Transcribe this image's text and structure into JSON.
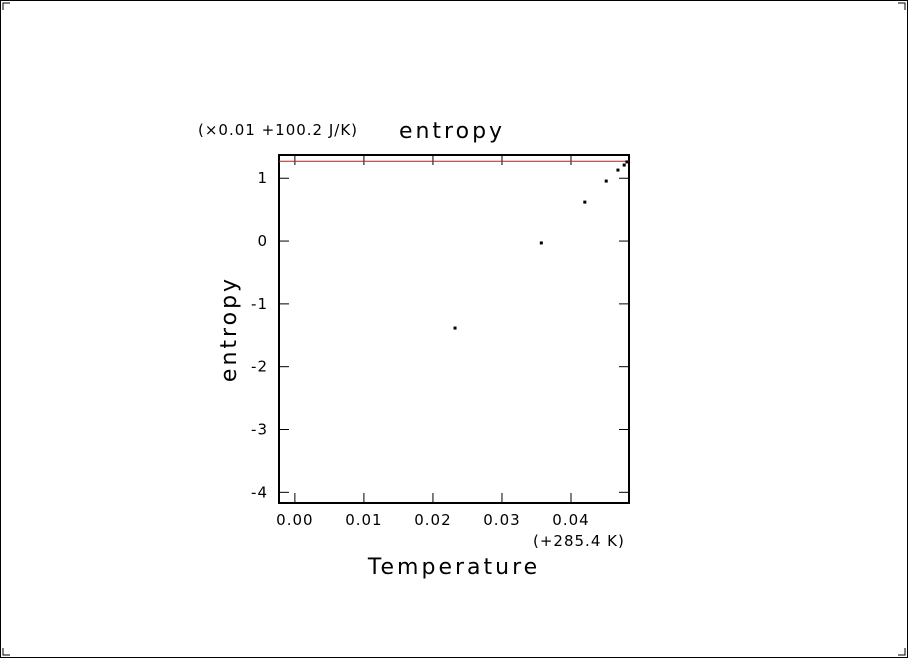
{
  "chart_data": {
    "type": "scatter",
    "title": "entropy",
    "y_offset_label": "(×0.01 +100.2 J/K)",
    "x_offset_label": "(+285.4 K)",
    "xlabel": "Temperature",
    "ylabel": "entropy",
    "x": [
      0.0232,
      0.0357,
      0.042,
      0.0451,
      0.0468,
      0.0477,
      0.0481
    ],
    "values": [
      -1.385,
      -0.03,
      0.62,
      0.955,
      1.13,
      1.21,
      1.26
    ],
    "color": "#000000",
    "xlim": [
      -0.0023,
      0.0484
    ],
    "ylim": [
      -4.17,
      1.37
    ],
    "xticks": [
      {
        "value": 0,
        "label": "0.00"
      },
      0.01,
      0.02,
      0.03,
      0.04
    ],
    "yticks": [
      -4,
      -3,
      -2,
      -1,
      0,
      1
    ],
    "hline": {
      "value": 1.27,
      "color": "#ff0000"
    }
  }
}
